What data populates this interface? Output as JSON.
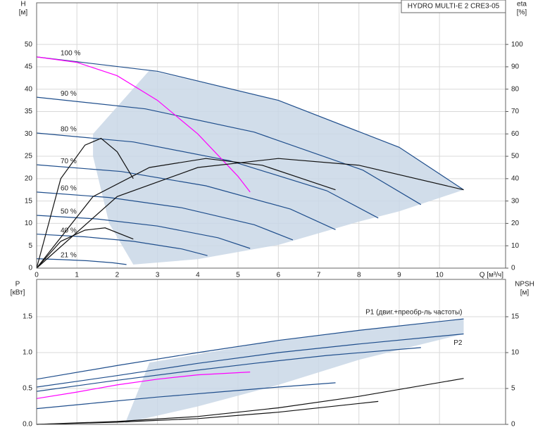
{
  "chart_data": [
    {
      "type": "line",
      "title": "HYDRO MULTI-E 2 CRE3-05",
      "y_label": "H",
      "y_unit": "[м]",
      "y2_label": "eta",
      "y2_unit": "[%]",
      "x_label": "Q [м³/ч]",
      "xlim": [
        0,
        11.64
      ],
      "ylim": [
        0,
        59.3
      ],
      "y2lim": [
        0,
        118.6
      ],
      "xticks": [
        0,
        1,
        2,
        3,
        4,
        5,
        6,
        7,
        8,
        9,
        10
      ],
      "yticks": [
        0,
        5,
        10,
        15,
        20,
        25,
        30,
        35,
        40,
        45,
        50
      ],
      "y2ticks": [
        0,
        10,
        20,
        30,
        40,
        50,
        60,
        70,
        80,
        90,
        100
      ],
      "grid": true,
      "series": [
        {
          "fill": true,
          "color": "#c9d7e6",
          "x": [
            2.8,
            6,
            9,
            10.6,
            9,
            8,
            6,
            4,
            2.4,
            1.8,
            1.4,
            1.4
          ],
          "values": [
            44.2,
            37.5,
            27,
            17.5,
            12.7,
            10.4,
            5.2,
            2,
            0.8,
            10,
            25,
            30
          ]
        },
        {
          "name": "100 %",
          "color": "#1f4e8c",
          "x": [
            0,
            3,
            6,
            9,
            10.6
          ],
          "values": [
            47.2,
            44,
            37.5,
            27,
            17.5
          ]
        },
        {
          "name": "90 %",
          "color": "#1f4e8c",
          "x": [
            0,
            2.7,
            5.4,
            8.1,
            9.54
          ],
          "values": [
            38.2,
            35.6,
            30.4,
            21.9,
            14.2
          ]
        },
        {
          "name": "80 %",
          "color": "#1f4e8c",
          "x": [
            0,
            2.4,
            4.8,
            7.2,
            8.48
          ],
          "values": [
            30.2,
            28.2,
            24,
            17.3,
            11.2
          ]
        },
        {
          "name": "70 %",
          "color": "#1f4e8c",
          "x": [
            0,
            2.1,
            4.2,
            6.3,
            7.42
          ],
          "values": [
            23.1,
            21.6,
            18.4,
            13.2,
            8.6
          ]
        },
        {
          "name": "60 %",
          "color": "#1f4e8c",
          "x": [
            0,
            1.8,
            3.6,
            5.4,
            6.36
          ],
          "values": [
            17,
            15.8,
            13.5,
            9.7,
            6.3
          ]
        },
        {
          "name": "50 %",
          "color": "#1f4e8c",
          "x": [
            0,
            1.5,
            3,
            4.5,
            5.3
          ],
          "values": [
            11.8,
            11,
            9.4,
            6.8,
            4.4
          ]
        },
        {
          "name": "40 %",
          "color": "#1f4e8c",
          "x": [
            0,
            1.2,
            2.4,
            3.6,
            4.24
          ],
          "values": [
            7.6,
            7,
            6,
            4.3,
            2.8
          ]
        },
        {
          "name": "21 %",
          "color": "#1f4e8c",
          "x": [
            0,
            0.63,
            1.26,
            1.89,
            2.23
          ],
          "values": [
            2.1,
            1.9,
            1.65,
            1.2,
            0.8
          ]
        },
        {
          "color": "#ff00ff",
          "x": [
            0,
            1,
            2,
            3,
            4,
            5,
            5.3
          ],
          "values": [
            47.2,
            46,
            43,
            37.5,
            30,
            20.5,
            17
          ]
        },
        {
          "axis": "y2",
          "color": "#111111",
          "x": [
            0,
            2,
            4,
            6,
            8,
            10.6
          ],
          "values": [
            0,
            32,
            45,
            49,
            46,
            35
          ]
        },
        {
          "axis": "y2",
          "color": "#111111",
          "x": [
            0,
            1.4,
            2.8,
            4.2,
            5.6,
            7.42
          ],
          "values": [
            0,
            32,
            45,
            49,
            46,
            35
          ]
        },
        {
          "axis": "y2",
          "color": "#111111",
          "x": [
            0,
            0.6,
            1.2,
            1.6,
            2,
            2.4
          ],
          "values": [
            0,
            40,
            55,
            58,
            52,
            40
          ]
        },
        {
          "axis": "y2",
          "color": "#111111",
          "x": [
            0,
            0.6,
            1.2,
            1.7,
            2.4
          ],
          "values": [
            0,
            12,
            17,
            18,
            13
          ]
        }
      ]
    },
    {
      "type": "line",
      "y_label": "P",
      "y_unit": "[кВт]",
      "y2_label": "NPSH",
      "y2_unit": "[м]",
      "xlim": [
        0,
        11.64
      ],
      "ylim": [
        0,
        2.02
      ],
      "y2lim": [
        0,
        20.2
      ],
      "yticks": [
        {
          "value": 0,
          "label": "0.0"
        },
        0.5,
        {
          "value": 1,
          "label": "1.0"
        },
        1.5
      ],
      "y2ticks": [
        0,
        5,
        10,
        15
      ],
      "grid": true,
      "series": [
        {
          "fill": true,
          "color": "#c9d7e6",
          "x": [
            2.8,
            6,
            8,
            10.6,
            10.6,
            8,
            6,
            4,
            2.2
          ],
          "values": [
            0.86,
            1.17,
            1.31,
            1.47,
            1.26,
            0.9,
            0.55,
            0.25,
            0.02
          ]
        },
        {
          "name": "P1 (двиг.+преобр-ль частоты)",
          "color": "#1f4e8c",
          "x": [
            0,
            2,
            4,
            6,
            8,
            10.6
          ],
          "values": [
            0.63,
            0.82,
            1,
            1.17,
            1.31,
            1.47
          ]
        },
        {
          "name": "P2",
          "color": "#1f4e8c",
          "x": [
            0,
            2,
            4,
            6,
            8,
            10.6
          ],
          "values": [
            0.52,
            0.68,
            0.85,
            1,
            1.12,
            1.26
          ]
        },
        {
          "color": "#1f4e8c",
          "x": [
            0,
            1.8,
            3.6,
            5.4,
            7.2,
            9.54
          ],
          "values": [
            0.46,
            0.6,
            0.73,
            0.85,
            0.96,
            1.07
          ]
        },
        {
          "color": "#1f4e8c",
          "x": [
            0,
            1.5,
            3,
            4.5,
            6,
            7.42
          ],
          "values": [
            0.22,
            0.3,
            0.38,
            0.45,
            0.52,
            0.58
          ]
        },
        {
          "color": "#ff00ff",
          "x": [
            0,
            1,
            2,
            3,
            4,
            5.3
          ],
          "values": [
            0.36,
            0.45,
            0.55,
            0.63,
            0.69,
            0.73
          ]
        },
        {
          "axis": "y2",
          "color": "#111111",
          "x": [
            0,
            2,
            4,
            6,
            8,
            10.6
          ],
          "values": [
            0,
            0.4,
            1.1,
            2.3,
            3.9,
            6.4
          ]
        },
        {
          "axis": "y2",
          "color": "#111111",
          "x": [
            0,
            2,
            4,
            6,
            8.48
          ],
          "values": [
            0,
            0.3,
            0.8,
            1.7,
            3.2
          ]
        }
      ]
    }
  ]
}
